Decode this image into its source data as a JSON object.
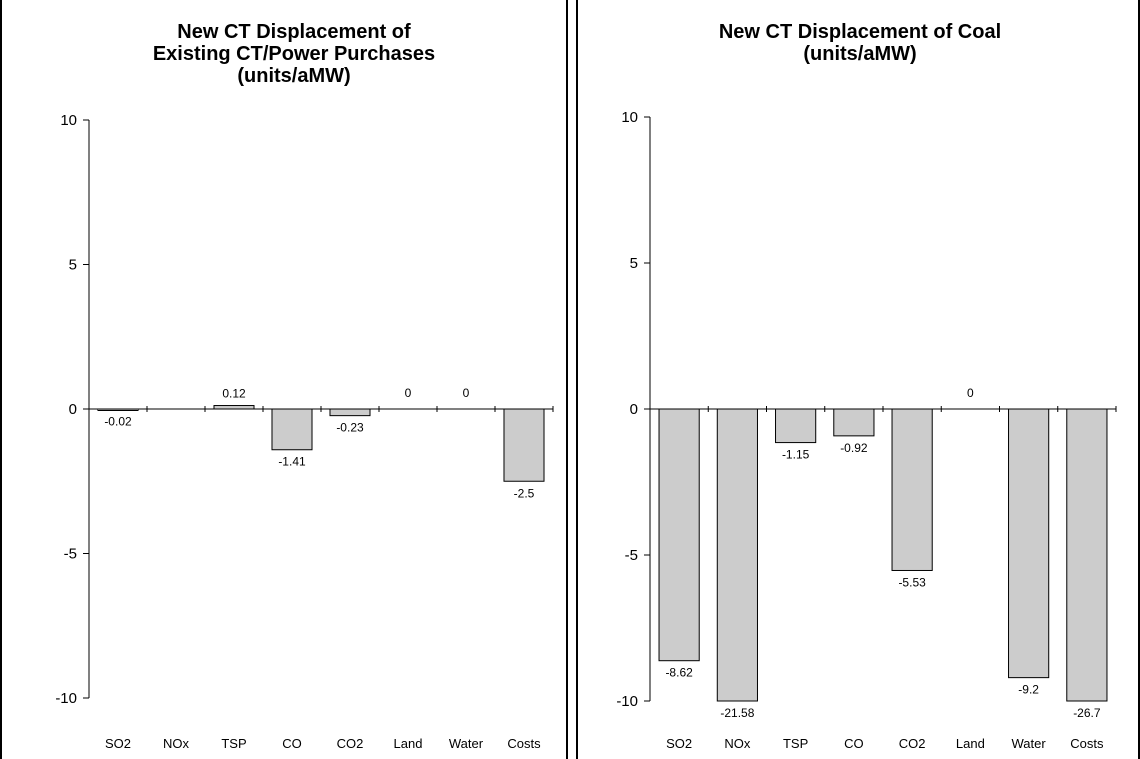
{
  "chart_data": [
    {
      "type": "bar",
      "title": [
        "New CT Displacement of",
        "Existing CT/Power Purchases",
        "(units/aMW)"
      ],
      "categories": [
        "SO2",
        "NOx",
        "TSP",
        "CO",
        "CO2",
        "Land",
        "Water",
        "Costs"
      ],
      "values": [
        -0.02,
        null,
        0.12,
        -1.41,
        -0.23,
        0,
        0,
        -2.5
      ],
      "data_labels": [
        "-0.02",
        "",
        "0.12",
        "-1.41",
        "-0.23",
        "0",
        "0",
        "-2.5"
      ],
      "ylim": [
        -10,
        10
      ],
      "yticks": [
        "10",
        "5",
        "0",
        "-5",
        "-10"
      ],
      "bar_color": "#cccccc",
      "grid": false,
      "legend": "none"
    },
    {
      "type": "bar",
      "title": [
        "New CT Displacement of Coal",
        "(units/aMW)"
      ],
      "categories": [
        "SO2",
        "NOx",
        "TSP",
        "CO",
        "CO2",
        "Land",
        "Water",
        "Costs"
      ],
      "values": [
        -8.62,
        -21.58,
        -1.15,
        -0.92,
        -5.53,
        0,
        -9.2,
        -26.7
      ],
      "data_labels": [
        "-8.62",
        "-21.58",
        "-1.15",
        "-0.92",
        "-5.53",
        "0",
        "-9.2",
        "-26.7"
      ],
      "ylim": [
        -10,
        10
      ],
      "yticks": [
        "10",
        "5",
        "0",
        "-5",
        "-10"
      ],
      "bar_color": "#cccccc",
      "grid": false,
      "legend": "none"
    }
  ]
}
